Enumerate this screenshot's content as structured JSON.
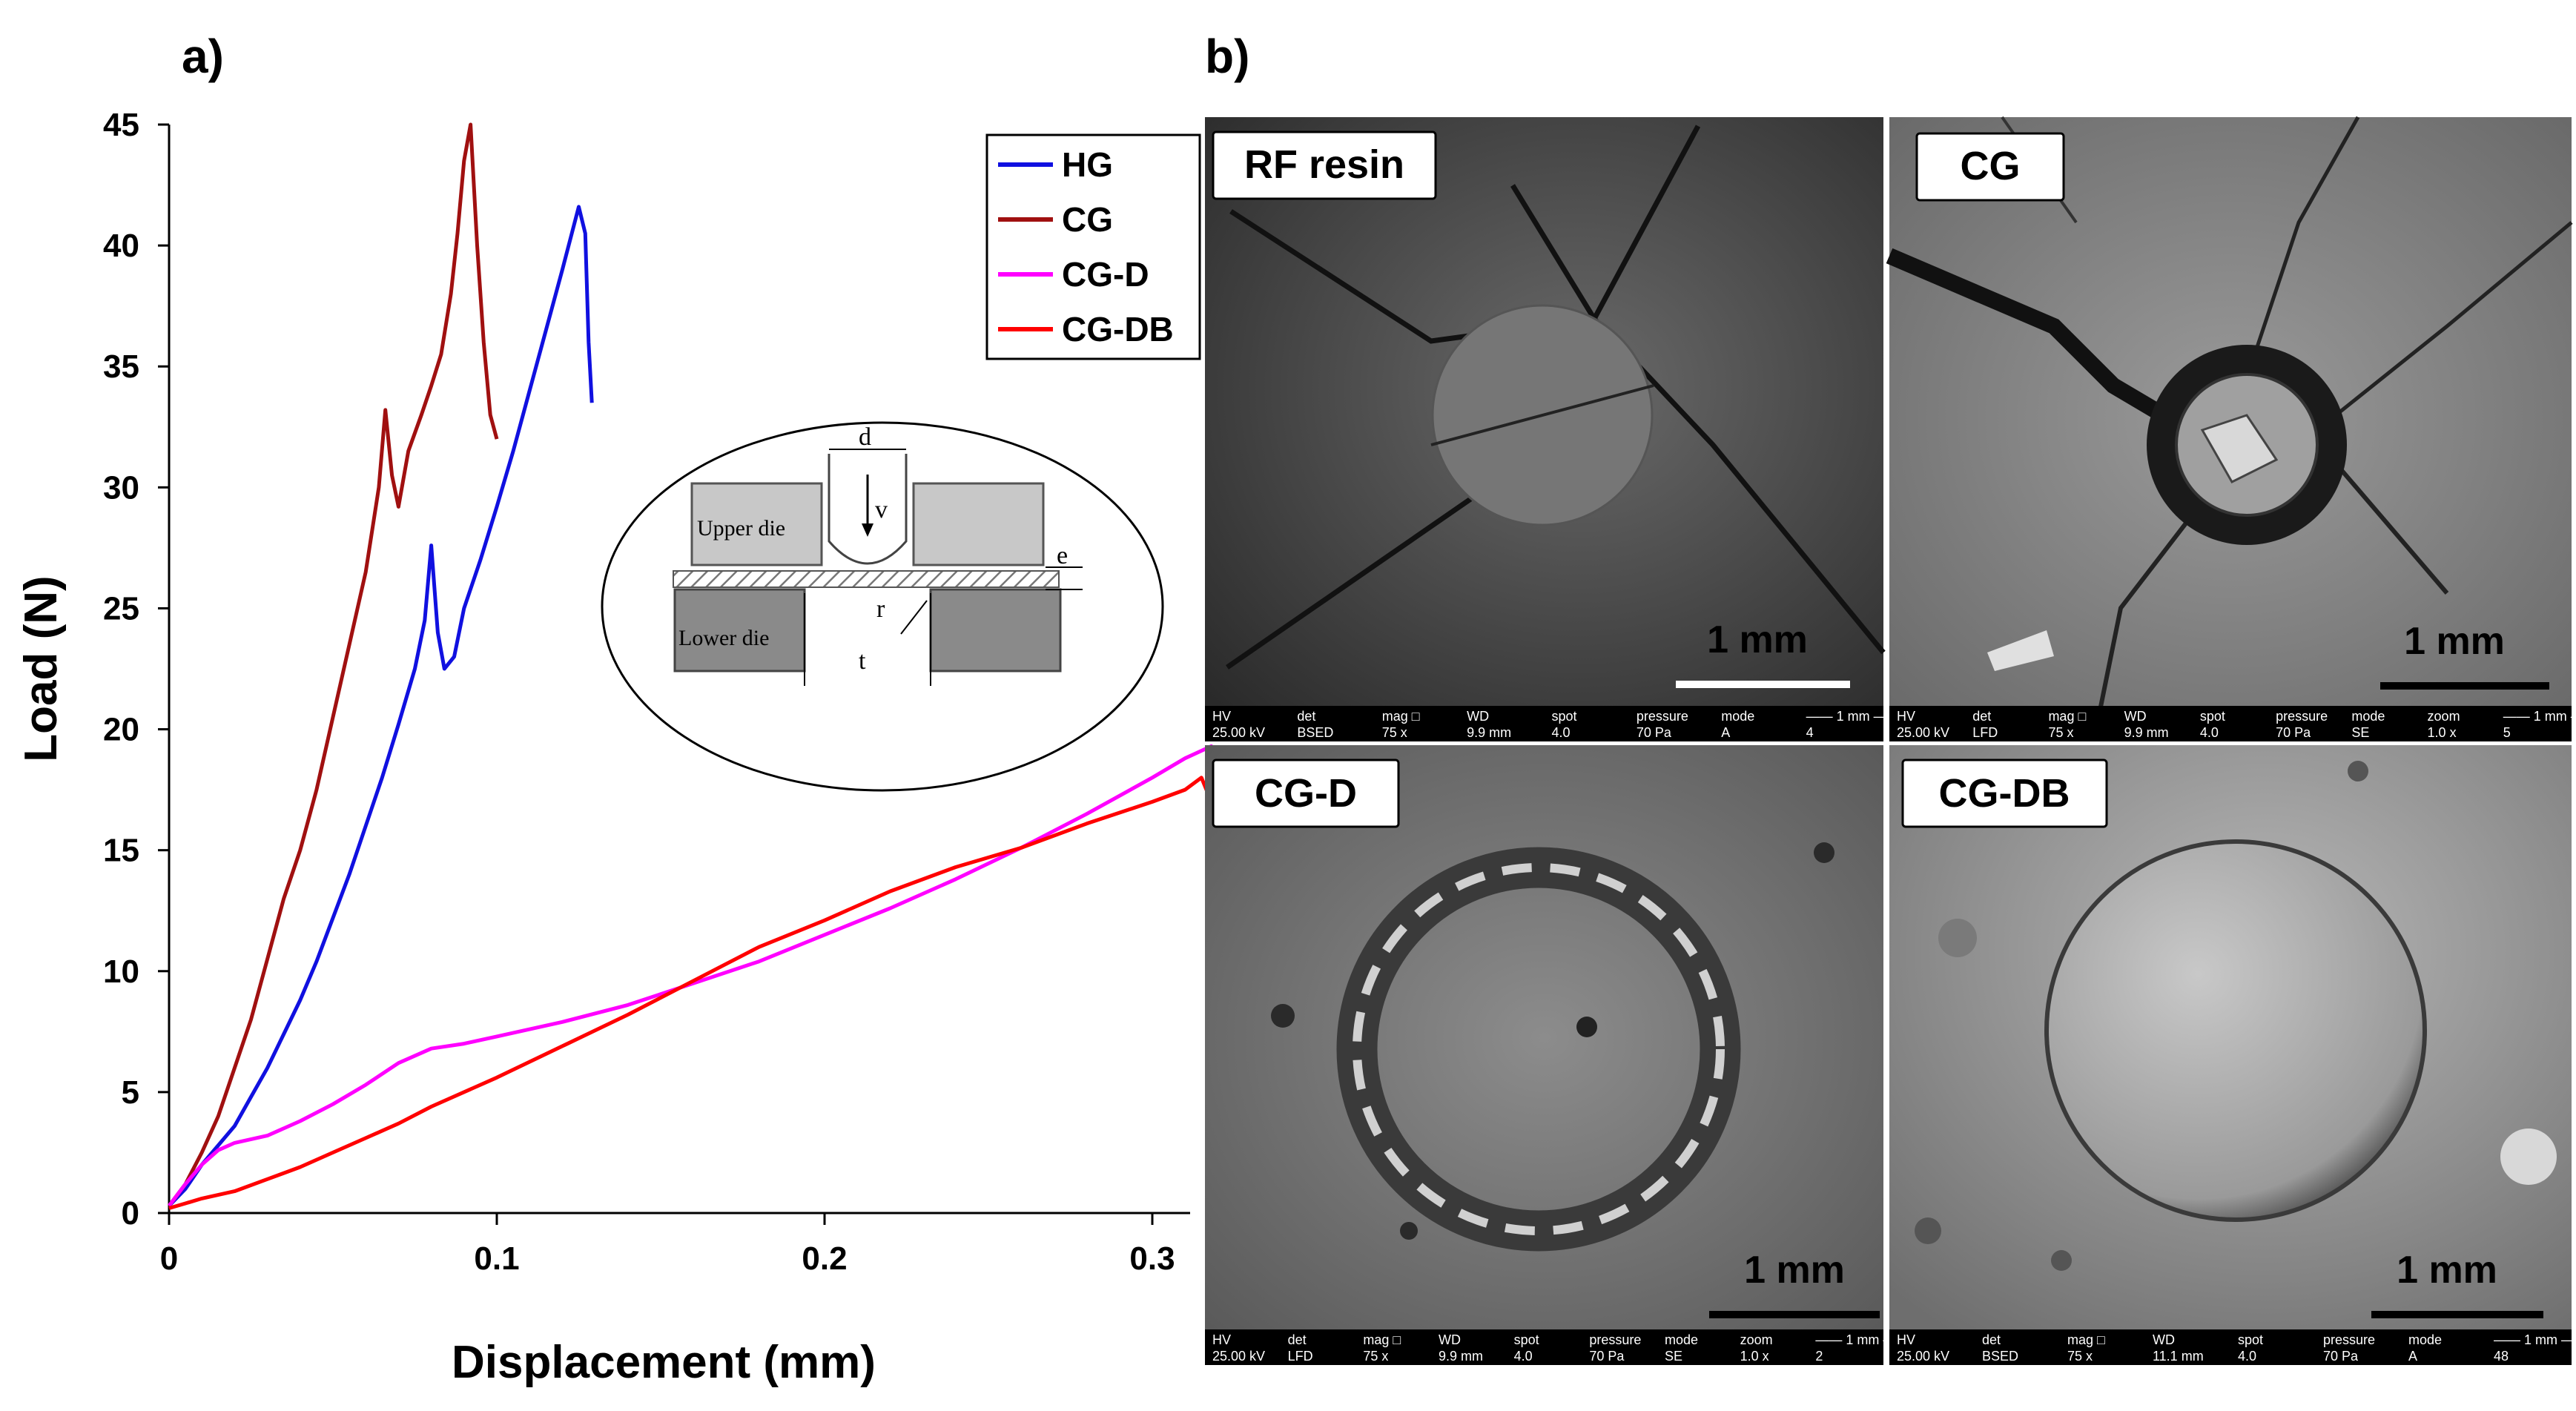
{
  "panel_a_label": "a)",
  "panel_b_label": "b)",
  "chart_data": {
    "type": "line",
    "title": "",
    "xlabel": "Displacement (mm)",
    "ylabel": "Load (N)",
    "xlim": [
      0,
      0.35
    ],
    "ylim": [
      0,
      45
    ],
    "x_ticks": [
      "0",
      "0.1",
      "0.2",
      "0.3"
    ],
    "y_ticks": [
      "0",
      "5",
      "10",
      "15",
      "20",
      "25",
      "30",
      "35",
      "40",
      "45"
    ],
    "grid": false,
    "legend_position": "top-right",
    "series": [
      {
        "name": "HG",
        "color": "#1010e0",
        "points": [
          [
            0,
            0.3
          ],
          [
            0.005,
            1.0
          ],
          [
            0.01,
            2.0
          ],
          [
            0.015,
            2.8
          ],
          [
            0.02,
            3.6
          ],
          [
            0.025,
            4.8
          ],
          [
            0.03,
            6.0
          ],
          [
            0.035,
            7.4
          ],
          [
            0.04,
            8.8
          ],
          [
            0.045,
            10.4
          ],
          [
            0.05,
            12.2
          ],
          [
            0.055,
            14.0
          ],
          [
            0.06,
            16.0
          ],
          [
            0.065,
            18.0
          ],
          [
            0.07,
            20.2
          ],
          [
            0.075,
            22.5
          ],
          [
            0.078,
            24.5
          ],
          [
            0.08,
            27.6
          ],
          [
            0.082,
            24.0
          ],
          [
            0.084,
            22.5
          ],
          [
            0.087,
            23.0
          ],
          [
            0.09,
            25.0
          ],
          [
            0.095,
            27.0
          ],
          [
            0.1,
            29.2
          ],
          [
            0.105,
            31.5
          ],
          [
            0.11,
            34.0
          ],
          [
            0.115,
            36.5
          ],
          [
            0.12,
            39.0
          ],
          [
            0.125,
            41.6
          ],
          [
            0.127,
            40.5
          ],
          [
            0.128,
            36.0
          ],
          [
            0.129,
            33.5
          ]
        ]
      },
      {
        "name": "CG",
        "color": "#a01010",
        "points": [
          [
            0,
            0.3
          ],
          [
            0.005,
            1.2
          ],
          [
            0.01,
            2.5
          ],
          [
            0.015,
            4.0
          ],
          [
            0.02,
            6.0
          ],
          [
            0.025,
            8.0
          ],
          [
            0.03,
            10.5
          ],
          [
            0.035,
            13.0
          ],
          [
            0.04,
            15.0
          ],
          [
            0.045,
            17.5
          ],
          [
            0.05,
            20.5
          ],
          [
            0.055,
            23.5
          ],
          [
            0.06,
            26.5
          ],
          [
            0.064,
            30.0
          ],
          [
            0.066,
            33.2
          ],
          [
            0.068,
            30.5
          ],
          [
            0.07,
            29.2
          ],
          [
            0.073,
            31.5
          ],
          [
            0.077,
            33.0
          ],
          [
            0.08,
            34.2
          ],
          [
            0.083,
            35.5
          ],
          [
            0.086,
            38.0
          ],
          [
            0.088,
            40.5
          ],
          [
            0.09,
            43.5
          ],
          [
            0.092,
            45.0
          ],
          [
            0.094,
            40.0
          ],
          [
            0.096,
            36.0
          ],
          [
            0.098,
            33.0
          ],
          [
            0.1,
            32.0
          ]
        ]
      },
      {
        "name": "CG-D",
        "color": "#ff00ff",
        "points": [
          [
            0,
            0.3
          ],
          [
            0.005,
            1.2
          ],
          [
            0.01,
            2.0
          ],
          [
            0.015,
            2.6
          ],
          [
            0.02,
            2.9
          ],
          [
            0.03,
            3.2
          ],
          [
            0.04,
            3.8
          ],
          [
            0.05,
            4.5
          ],
          [
            0.06,
            5.3
          ],
          [
            0.07,
            6.2
          ],
          [
            0.08,
            6.8
          ],
          [
            0.09,
            7.0
          ],
          [
            0.1,
            7.3
          ],
          [
            0.12,
            7.9
          ],
          [
            0.14,
            8.6
          ],
          [
            0.16,
            9.5
          ],
          [
            0.18,
            10.4
          ],
          [
            0.2,
            11.5
          ],
          [
            0.22,
            12.6
          ],
          [
            0.24,
            13.8
          ],
          [
            0.26,
            15.1
          ],
          [
            0.28,
            16.5
          ],
          [
            0.3,
            18.0
          ],
          [
            0.31,
            18.8
          ],
          [
            0.318,
            19.3
          ],
          [
            0.322,
            18.0
          ],
          [
            0.325,
            16.0
          ],
          [
            0.328,
            15.5
          ]
        ]
      },
      {
        "name": "CG-DB",
        "color": "#ff0000",
        "points": [
          [
            0,
            0.2
          ],
          [
            0.005,
            0.4
          ],
          [
            0.01,
            0.6
          ],
          [
            0.02,
            0.9
          ],
          [
            0.03,
            1.4
          ],
          [
            0.04,
            1.9
          ],
          [
            0.05,
            2.5
          ],
          [
            0.06,
            3.1
          ],
          [
            0.07,
            3.7
          ],
          [
            0.08,
            4.4
          ],
          [
            0.1,
            5.6
          ],
          [
            0.12,
            6.9
          ],
          [
            0.14,
            8.2
          ],
          [
            0.16,
            9.6
          ],
          [
            0.18,
            11.0
          ],
          [
            0.2,
            12.1
          ],
          [
            0.22,
            13.3
          ],
          [
            0.24,
            14.3
          ],
          [
            0.26,
            15.1
          ],
          [
            0.28,
            16.1
          ],
          [
            0.3,
            17.0
          ],
          [
            0.31,
            17.5
          ],
          [
            0.315,
            18.0
          ],
          [
            0.318,
            17.0
          ],
          [
            0.32,
            16.7
          ],
          [
            0.328,
            16.7
          ]
        ]
      }
    ]
  },
  "inset": {
    "upper_die": "Upper die",
    "lower_die": "Lower die",
    "d": "d",
    "v": "v",
    "e": "e",
    "r": "r",
    "t": "t"
  },
  "sem_panels": [
    {
      "label": "RF resin",
      "scale": "1 mm",
      "info": [
        "HV",
        "det",
        "mag □",
        "WD",
        "spot",
        "pressure",
        "mode",
        "—— 1 mm ——",
        "25.00 kV",
        "BSED",
        "75 x",
        "9.9 mm",
        "4.0",
        "70 Pa",
        "A",
        "4"
      ]
    },
    {
      "label": "CG",
      "scale": "1 mm",
      "info": [
        "HV",
        "det",
        "mag □",
        "WD",
        "spot",
        "pressure",
        "mode",
        "zoom",
        "—— 1 mm ——",
        "25.00 kV",
        "LFD",
        "75 x",
        "9.9 mm",
        "4.0",
        "70 Pa",
        "SE",
        "1.0 x",
        "5"
      ]
    },
    {
      "label": "CG-D",
      "scale": "1 mm",
      "info": [
        "HV",
        "det",
        "mag □",
        "WD",
        "spot",
        "pressure",
        "mode",
        "zoom",
        "—— 1 mm ——",
        "25.00 kV",
        "LFD",
        "75 x",
        "9.9 mm",
        "4.0",
        "70 Pa",
        "SE",
        "1.0 x",
        "2"
      ]
    },
    {
      "label": "CG-DB",
      "scale": "1 mm",
      "info": [
        "HV",
        "det",
        "mag □",
        "WD",
        "spot",
        "pressure",
        "mode",
        "—— 1 mm ——",
        "25.00 kV",
        "BSED",
        "75 x",
        "11.1 mm",
        "4.0",
        "70 Pa",
        "A",
        "48"
      ]
    }
  ]
}
